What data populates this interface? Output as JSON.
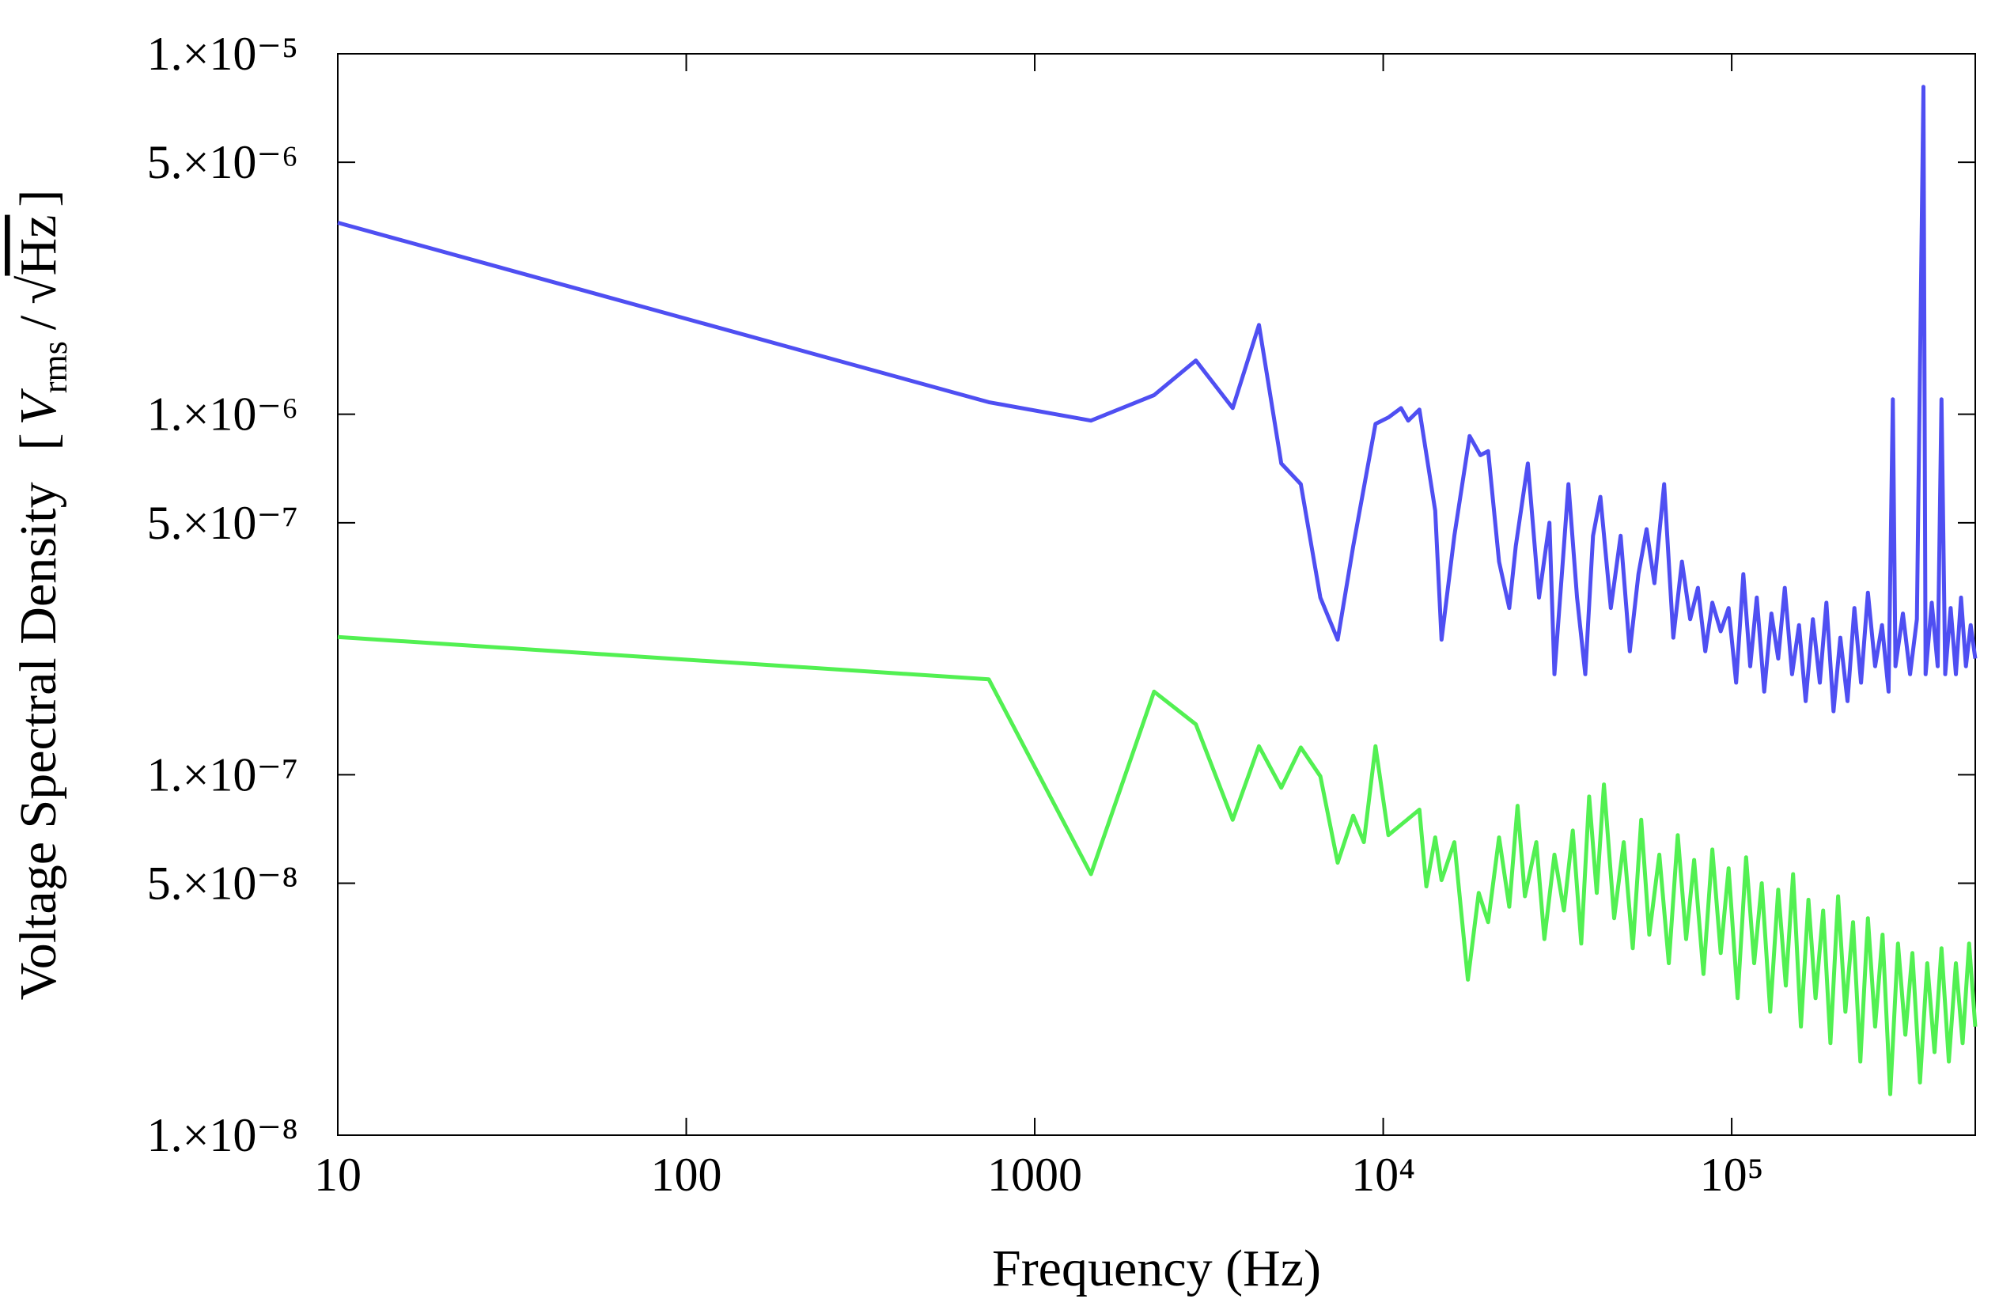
{
  "chart_data": {
    "type": "line",
    "xlabel": "Frequency (Hz)",
    "ylabel": "Voltage Spectral Density",
    "yunit": [
      "[",
      "V",
      "rms",
      "/",
      "√",
      "Hz",
      "]"
    ],
    "xscale": "log",
    "yscale": "log",
    "xlim": [
      10,
      500000
    ],
    "ylim": [
      1e-08,
      1e-05
    ],
    "xticks": [
      10,
      100,
      1000,
      {
        "value": 10000,
        "label": "10⁴"
      },
      {
        "value": 100000,
        "label": "10⁵"
      }
    ],
    "yticks": [
      {
        "value": 1e-05,
        "label": "1.×10⁻⁵"
      },
      {
        "value": 5e-06,
        "label": "5.×10⁻⁶"
      },
      {
        "value": 1e-06,
        "label": "1.×10⁻⁶"
      },
      {
        "value": 5e-07,
        "label": "5.×10⁻⁷"
      },
      {
        "value": 1e-07,
        "label": "1.×10⁻⁷"
      },
      {
        "value": 5e-08,
        "label": "5.×10⁻⁸"
      },
      {
        "value": 1e-08,
        "label": "1.×10⁻⁸"
      }
    ],
    "series": [
      {
        "color": "#4f4ff2",
        "x": [
          10,
          738,
          1450,
          2200,
          2900,
          3700,
          4400,
          5100,
          5800,
          6600,
          7400,
          8200,
          9500,
          10350,
          11250,
          11800,
          12700,
          14100,
          14700,
          16000,
          17700,
          19000,
          20000,
          21500,
          23000,
          24000,
          26000,
          28000,
          30000,
          31000,
          33000,
          34000,
          36000,
          38000,
          40000,
          42000,
          45000,
          48000,
          51000,
          54000,
          57000,
          60000,
          64000,
          68000,
          72000,
          76000,
          80000,
          84000,
          88000,
          93000,
          98000,
          103000,
          108000,
          113000,
          118000,
          124000,
          130000,
          136000,
          142000,
          149000,
          156000,
          163000,
          171000,
          179000,
          187000,
          196000,
          205000,
          215000,
          225000,
          235000,
          246000,
          258000,
          270000,
          282000,
          290000,
          295000,
          310000,
          325000,
          340000,
          355000,
          360000,
          375000,
          390000,
          400000,
          410000,
          425000,
          440000,
          455000,
          470000,
          485000,
          500000
        ],
        "values": [
          3.4e-06,
          1.08e-06,
          9.6e-07,
          1.13e-06,
          1.41e-06,
          1.04e-06,
          1.77e-06,
          7.3e-07,
          6.4e-07,
          3.1e-07,
          2.37e-07,
          4.3e-07,
          9.4e-07,
          9.8e-07,
          1.04e-06,
          9.6e-07,
          1.03e-06,
          5.4e-07,
          2.37e-07,
          4.6e-07,
          8.7e-07,
          7.7e-07,
          7.9e-07,
          3.9e-07,
          2.9e-07,
          4.3e-07,
          7.3e-07,
          3.1e-07,
          5e-07,
          1.9e-07,
          4.3e-07,
          6.4e-07,
          3.1e-07,
          1.9e-07,
          4.6e-07,
          5.9e-07,
          2.9e-07,
          4.6e-07,
          2.2e-07,
          3.6e-07,
          4.8e-07,
          3.4e-07,
          6.4e-07,
          2.4e-07,
          3.9e-07,
          2.7e-07,
          3.3e-07,
          2.2e-07,
          3e-07,
          2.5e-07,
          2.9e-07,
          1.8e-07,
          3.6e-07,
          2e-07,
          3.1e-07,
          1.7e-07,
          2.8e-07,
          2.1e-07,
          3.3e-07,
          1.9e-07,
          2.6e-07,
          1.6e-07,
          2.7e-07,
          1.8e-07,
          3e-07,
          1.5e-07,
          2.4e-07,
          1.6e-07,
          2.9e-07,
          1.8e-07,
          3.2e-07,
          2e-07,
          2.6e-07,
          1.7e-07,
          1.1e-06,
          2e-07,
          2.8e-07,
          1.9e-07,
          2.7e-07,
          8.1e-06,
          1.9e-07,
          3e-07,
          2e-07,
          1.1e-06,
          1.9e-07,
          2.9e-07,
          1.9e-07,
          3.1e-07,
          2e-07,
          2.6e-07,
          2.1e-07
        ]
      },
      {
        "color": "#52f052",
        "x": [
          10,
          738,
          1450,
          2200,
          2900,
          3700,
          4400,
          5100,
          5800,
          6600,
          7400,
          8200,
          8800,
          9500,
          10350,
          12700,
          13300,
          14100,
          14700,
          16000,
          17500,
          18800,
          20000,
          21500,
          23000,
          24300,
          25500,
          27500,
          29000,
          31000,
          33000,
          35000,
          37000,
          39000,
          41000,
          43000,
          46000,
          49000,
          52000,
          55000,
          58000,
          62000,
          66000,
          70000,
          74000,
          78000,
          83000,
          88000,
          93000,
          98000,
          104000,
          110000,
          116000,
          122000,
          129000,
          136000,
          143000,
          150000,
          158000,
          166000,
          174000,
          183000,
          192000,
          202000,
          212000,
          223000,
          234000,
          246000,
          258000,
          271000,
          285000,
          300000,
          315000,
          330000,
          347000,
          364000,
          382000,
          400000,
          420000,
          440000,
          460000,
          480000,
          500000
        ],
        "values": [
          2.41e-07,
          1.84e-07,
          5.3e-08,
          1.7e-07,
          1.38e-07,
          7.5e-08,
          1.2e-07,
          9.2e-08,
          1.19e-07,
          9.9e-08,
          5.7e-08,
          7.7e-08,
          6.5e-08,
          1.2e-07,
          6.8e-08,
          8e-08,
          4.9e-08,
          6.7e-08,
          5.1e-08,
          6.5e-08,
          2.7e-08,
          4.7e-08,
          3.9e-08,
          6.7e-08,
          4.3e-08,
          8.2e-08,
          4.6e-08,
          6.5e-08,
          3.5e-08,
          6e-08,
          4.2e-08,
          7e-08,
          3.4e-08,
          8.7e-08,
          4.7e-08,
          9.4e-08,
          4e-08,
          6.5e-08,
          3.3e-08,
          7.5e-08,
          3.6e-08,
          6e-08,
          3e-08,
          6.8e-08,
          3.5e-08,
          5.8e-08,
          2.8e-08,
          6.2e-08,
          3.2e-08,
          5.5e-08,
          2.4e-08,
          5.9e-08,
          3e-08,
          5e-08,
          2.2e-08,
          4.8e-08,
          2.6e-08,
          5.3e-08,
          2e-08,
          4.5e-08,
          2.4e-08,
          4.2e-08,
          1.8e-08,
          4.6e-08,
          2.2e-08,
          3.9e-08,
          1.6e-08,
          4e-08,
          2e-08,
          3.6e-08,
          1.3e-08,
          3.4e-08,
          1.9e-08,
          3.2e-08,
          1.4e-08,
          3e-08,
          1.7e-08,
          3.3e-08,
          1.6e-08,
          3e-08,
          1.8e-08,
          3.4e-08,
          2e-08
        ]
      }
    ]
  }
}
